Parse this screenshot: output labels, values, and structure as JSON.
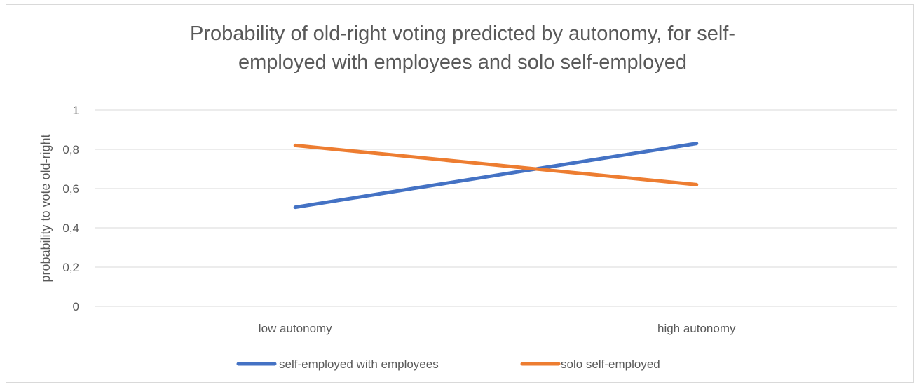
{
  "chart_data": {
    "type": "line",
    "title_lines": [
      "Probability of old-right voting predicted by autonomy, for self-",
      "employed with employees and solo self-employed"
    ],
    "xlabel": "",
    "ylabel": "probability to vote old-right",
    "categories": [
      "low autonomy",
      "high autonomy"
    ],
    "y_ticks": [
      "0",
      "0,2",
      "0,4",
      "0,6",
      "0,8",
      "1"
    ],
    "ylim": [
      0,
      1
    ],
    "grid": true,
    "legend_position": "bottom",
    "series": [
      {
        "name": "self-employed with employees",
        "color": "#4472C4",
        "values": [
          0.505,
          0.83
        ]
      },
      {
        "name": "solo self-employed",
        "color": "#ED7D31",
        "values": [
          0.82,
          0.62
        ]
      }
    ]
  }
}
